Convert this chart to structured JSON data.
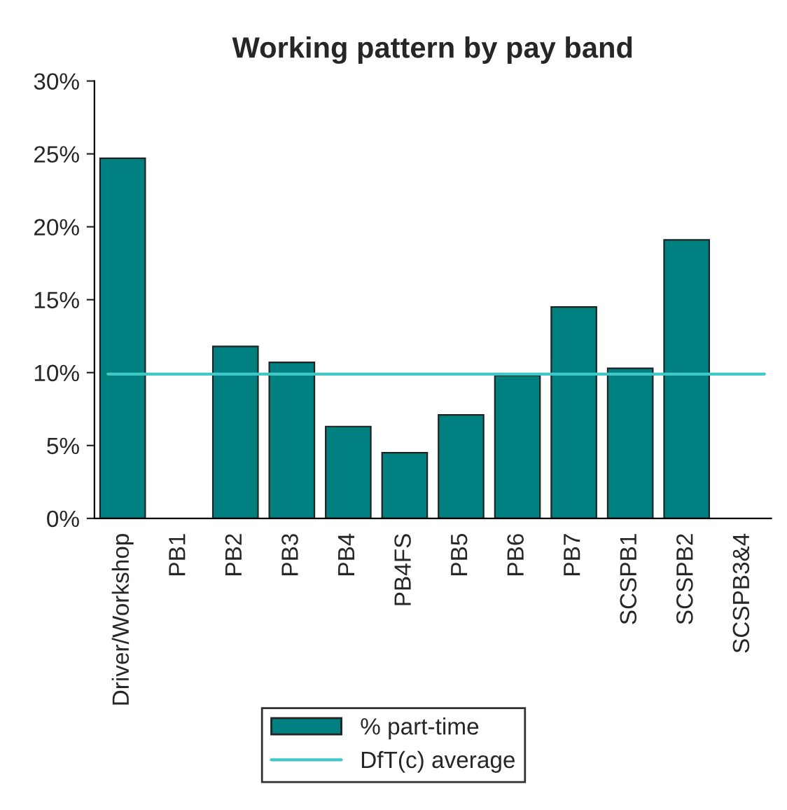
{
  "chart_data": {
    "type": "bar",
    "title": "Working pattern by pay band",
    "categories": [
      "Driver/Workshop",
      "PB1",
      "PB2",
      "PB3",
      "PB4",
      "PB4FS",
      "PB5",
      "PB6",
      "PB7",
      "SCSPB1",
      "SCSPB2",
      "SCSPB3&4"
    ],
    "series": [
      {
        "name": "% part-time",
        "color": "#008080",
        "values": [
          24.7,
          0,
          11.8,
          10.7,
          6.3,
          4.5,
          7.1,
          9.8,
          14.5,
          10.3,
          19.1,
          0
        ]
      }
    ],
    "ref_lines": [
      {
        "axis": "y",
        "value": 9.9,
        "label": "DfT(c) average",
        "color": "#40c8c8",
        "line_style": "solid"
      }
    ],
    "ylim": [
      0,
      30
    ],
    "yticks": [
      {
        "value": 0,
        "label": "0%"
      },
      {
        "value": 5,
        "label": "5%"
      },
      {
        "value": 10,
        "label": "10%"
      },
      {
        "value": 15,
        "label": "15%"
      },
      {
        "value": 20,
        "label": "20%"
      },
      {
        "value": 25,
        "label": "25%"
      },
      {
        "value": 30,
        "label": "30%"
      }
    ],
    "grid": false,
    "legend": "bottom"
  }
}
